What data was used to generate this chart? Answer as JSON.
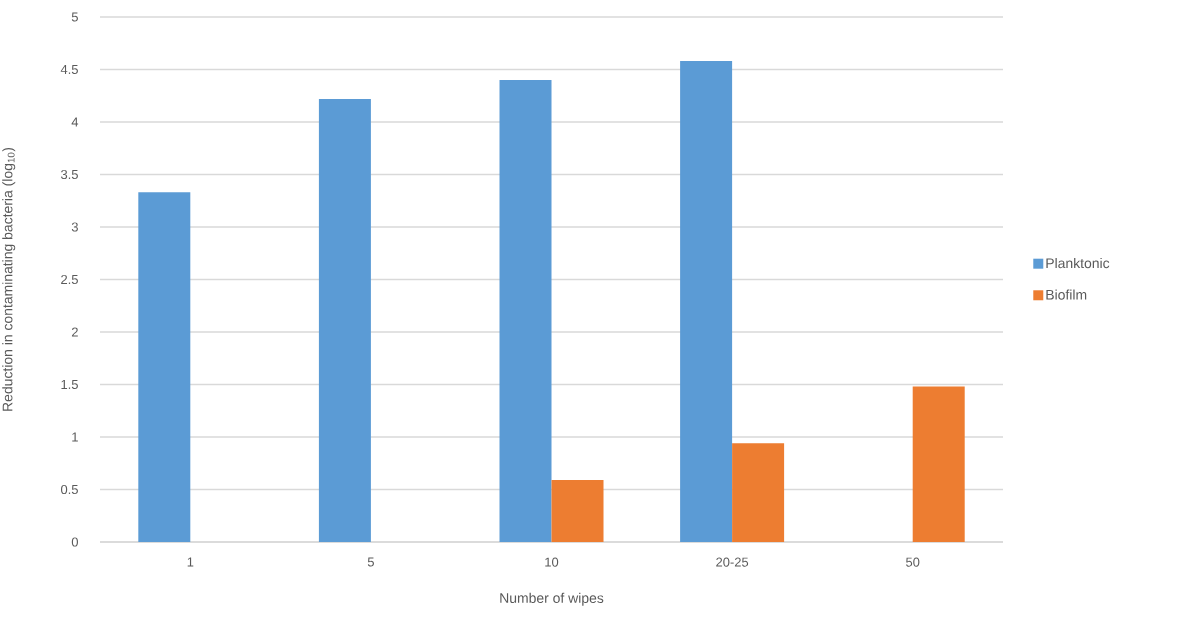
{
  "chart_data": {
    "type": "bar",
    "xlabel": "Number of wipes",
    "ylabel": "Reduction  in contaminating  bacteria  (log$_{10}$)",
    "categories": [
      "1",
      "5",
      "10",
      "20-25",
      "50"
    ],
    "series": [
      {
        "name": "Planktonic",
        "color": "#5b9bd5",
        "values": [
          3.33,
          4.22,
          4.4,
          4.58,
          null
        ]
      },
      {
        "name": "Biofilm",
        "color": "#ed7d31",
        "values": [
          null,
          null,
          0.59,
          0.94,
          1.48
        ]
      }
    ],
    "ylim": [
      0,
      5
    ],
    "yticks": [
      0,
      0.5,
      1,
      1.5,
      2,
      2.5,
      3,
      3.5,
      4,
      4.5,
      5
    ],
    "grid": "y",
    "legend": "right"
  }
}
